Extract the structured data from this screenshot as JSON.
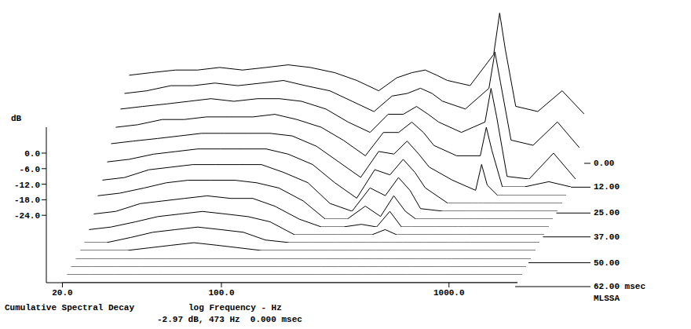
{
  "chart_data": {
    "type": "waterfall",
    "title": "Cumulative Spectral Decay",
    "x_label": "log Frequency - Hz",
    "y_label": "dB",
    "annotation": "-2.97 dB, 473 Hz  0.000 msec",
    "watermark": "MLSSA",
    "log": "x",
    "color": "#000000",
    "x": [
      20,
      25,
      32,
      40,
      50,
      63,
      80,
      100,
      125,
      160,
      200,
      250,
      300,
      350,
      400,
      450,
      500,
      630,
      800,
      850,
      900,
      1000,
      1250,
      1600,
      2000
    ],
    "xlim": [
      17,
      2000
    ],
    "xticks": [
      {
        "value": 20,
        "label": "20.0"
      },
      {
        "value": 100,
        "label": "100.0"
      },
      {
        "value": 1000,
        "label": "1000.0"
      }
    ],
    "ylim": [
      -50,
      10
    ],
    "yticks": [
      {
        "value": 0,
        "label": "0.0"
      },
      {
        "value": -6,
        "label": "-6.0"
      },
      {
        "value": -12,
        "label": "-12.0"
      },
      {
        "value": -18,
        "label": "-18.0"
      },
      {
        "value": -24,
        "label": "-24.0"
      }
    ],
    "time_lim": [
      0,
      62
    ],
    "time_ticks": [
      {
        "value": 0,
        "label": "0.00"
      },
      {
        "value": 12,
        "label": "12.00"
      },
      {
        "value": 25,
        "label": "25.00"
      },
      {
        "value": 37,
        "label": "37.00"
      },
      {
        "value": 50,
        "label": "50.00"
      },
      {
        "value": 62,
        "label": "62.00 msec"
      }
    ],
    "slices": [
      {
        "time": 0,
        "values": [
          -16,
          -15,
          -14,
          -14,
          -13,
          -14,
          -13,
          -12,
          -13,
          -15,
          -18,
          -22,
          -17,
          -15,
          -14,
          -16,
          -18,
          -20,
          -8,
          8,
          -6,
          -28,
          -30,
          -22,
          -31
        ]
      },
      {
        "time": 4,
        "values": [
          -20,
          -19,
          -17,
          -17,
          -16,
          -17,
          -16,
          -15,
          -17,
          -19,
          -23,
          -27,
          -21,
          -20,
          -18,
          -20,
          -23,
          -26,
          -18,
          -4,
          -16,
          -38,
          -40,
          -31,
          -41
        ]
      },
      {
        "time": 8,
        "values": [
          -23,
          -22,
          -21,
          -20,
          -19,
          -20,
          -19,
          -19,
          -20,
          -23,
          -28,
          -32,
          -25,
          -25,
          -22,
          -25,
          -28,
          -32,
          -28,
          -15,
          -26,
          -49,
          -50,
          -40,
          -50
        ]
      },
      {
        "time": 12,
        "values": [
          -27,
          -26,
          -24,
          -24,
          -23,
          -23,
          -23,
          -22,
          -24,
          -27,
          -32,
          -38,
          -29,
          -29,
          -25,
          -29,
          -34,
          -38,
          -38,
          -27,
          -36,
          -50,
          -50,
          -48,
          -50
        ]
      },
      {
        "time": 16,
        "values": [
          -30,
          -29,
          -28,
          -27,
          -26,
          -26,
          -26,
          -26,
          -27,
          -31,
          -37,
          -43,
          -33,
          -34,
          -29,
          -34,
          -39,
          -44,
          -48,
          -38,
          -46,
          -50,
          -50,
          -50,
          -50
        ]
      },
      {
        "time": 20,
        "values": [
          -34,
          -33,
          -31,
          -30,
          -29,
          -29,
          -29,
          -29,
          -31,
          -35,
          -42,
          -48,
          -37,
          -39,
          -33,
          -38,
          -44,
          -50,
          -50,
          -50,
          -50,
          -50,
          -50,
          -50,
          -50
        ]
      },
      {
        "time": 24,
        "values": [
          -38,
          -37,
          -34,
          -33,
          -32,
          -32,
          -32,
          -32,
          -35,
          -39,
          -47,
          -50,
          -41,
          -44,
          -37,
          -42,
          -49,
          -50,
          -50,
          -50,
          -50,
          -50,
          -50,
          -50,
          -50
        ]
      },
      {
        "time": 28,
        "values": [
          -41,
          -40,
          -38,
          -36,
          -35,
          -35,
          -35,
          -36,
          -38,
          -43,
          -50,
          -50,
          -45,
          -49,
          -41,
          -47,
          -50,
          -50,
          -50,
          -50,
          -50,
          -50,
          -50,
          -50,
          -50
        ]
      },
      {
        "time": 32,
        "values": [
          -45,
          -44,
          -41,
          -40,
          -39,
          -38,
          -39,
          -39,
          -42,
          -47,
          -50,
          -50,
          -49,
          -50,
          -44,
          -50,
          -50,
          -50,
          -50,
          -50,
          -50,
          -50,
          -50,
          -50,
          -50
        ]
      },
      {
        "time": 36,
        "values": [
          -48,
          -47,
          -45,
          -43,
          -42,
          -41,
          -42,
          -43,
          -45,
          -50,
          -50,
          -50,
          -50,
          -50,
          -48,
          -50,
          -50,
          -50,
          -50,
          -50,
          -50,
          -50,
          -50,
          -50,
          -50
        ]
      },
      {
        "time": 40,
        "values": [
          -50,
          -50,
          -48,
          -46,
          -45,
          -44,
          -45,
          -46,
          -49,
          -50,
          -50,
          -50,
          -50,
          -50,
          -50,
          -50,
          -50,
          -50,
          -50,
          -50,
          -50,
          -50,
          -50,
          -50,
          -50
        ]
      },
      {
        "time": 44,
        "values": [
          -50,
          -50,
          -50,
          -49,
          -48,
          -47,
          -48,
          -49,
          -50,
          -50,
          -50,
          -50,
          -50,
          -50,
          -50,
          -50,
          -50,
          -50,
          -50,
          -50,
          -50,
          -50,
          -50,
          -50,
          -50
        ]
      },
      {
        "time": 48,
        "values": [
          -50,
          -50,
          -50,
          -50,
          -50,
          -50,
          -50,
          -50,
          -50,
          -50,
          -50,
          -50,
          -50,
          -50,
          -50,
          -50,
          -50,
          -50,
          -50,
          -50,
          -50,
          -50,
          -50,
          -50,
          -50
        ]
      },
      {
        "time": 52,
        "values": [
          -50,
          -50,
          -50,
          -50,
          -50,
          -50,
          -50,
          -50,
          -50,
          -50,
          -50,
          -50,
          -50,
          -50,
          -50,
          -50,
          -50,
          -50,
          -50,
          -50,
          -50,
          -50,
          -50,
          -50,
          -50
        ]
      },
      {
        "time": 56,
        "values": [
          -50,
          -50,
          -50,
          -50,
          -50,
          -50,
          -50,
          -50,
          -50,
          -50,
          -50,
          -50,
          -50,
          -50,
          -50,
          -50,
          -50,
          -50,
          -50,
          -50,
          -50,
          -50,
          -50,
          -50,
          -50
        ]
      },
      {
        "time": 60,
        "values": [
          -50,
          -50,
          -50,
          -50,
          -50,
          -50,
          -50,
          -50,
          -50,
          -50,
          -50,
          -50,
          -50,
          -50,
          -50,
          -50,
          -50,
          -50,
          -50,
          -50,
          -50,
          -50,
          -50,
          -50,
          -50
        ]
      }
    ]
  }
}
